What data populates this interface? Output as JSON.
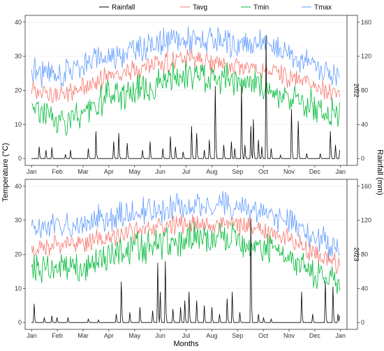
{
  "chart_data": {
    "type": "line",
    "legend": {
      "position": "top",
      "entries": [
        {
          "name": "Rainfall",
          "color": "#000000"
        },
        {
          "name": "Tavg",
          "color": "#F8766D"
        },
        {
          "name": "Tmin",
          "color": "#00BA38"
        },
        {
          "name": "Tmax",
          "color": "#619CFF"
        }
      ]
    },
    "xlabel": "Months",
    "ylabel_left": "Temperature (°C)",
    "ylabel_right": "Rainfall (mm)",
    "x_ticks": [
      "Jan",
      "Feb",
      "Mar",
      "Apr",
      "May",
      "Jun",
      "Jul",
      "Aug",
      "Sep",
      "Oct",
      "Nov",
      "Dec",
      "Jan"
    ],
    "y_left_ticks": [
      0,
      10,
      20,
      30,
      40
    ],
    "y_right_ticks": [
      0,
      40,
      80,
      120,
      160
    ],
    "y_left_range": [
      -2,
      42
    ],
    "y_right_range": [
      -8,
      168
    ],
    "grid": true,
    "panels": [
      {
        "strip": "2022",
        "series": {
          "Tmax_monthly": [
            26,
            24,
            28,
            30,
            32,
            34,
            35,
            34,
            33,
            34,
            31,
            27,
            24
          ],
          "Tavg_monthly": [
            21,
            18,
            21,
            24,
            26,
            28,
            29,
            28,
            27,
            26,
            24,
            21,
            19
          ],
          "Tmin_monthly": [
            16,
            11,
            13,
            18,
            20,
            22,
            24,
            24,
            23,
            21,
            18,
            15,
            13
          ],
          "Rainfall_events": [
            [
              0.3,
              14
            ],
            [
              0.55,
              10
            ],
            [
              0.8,
              13
            ],
            [
              1.3,
              5
            ],
            [
              1.5,
              10
            ],
            [
              2.2,
              12
            ],
            [
              2.5,
              32
            ],
            [
              3.2,
              20
            ],
            [
              3.4,
              30
            ],
            [
              3.7,
              18
            ],
            [
              4.3,
              10
            ],
            [
              4.6,
              20
            ],
            [
              5.1,
              12
            ],
            [
              5.4,
              26
            ],
            [
              5.6,
              14
            ],
            [
              5.9,
              8
            ],
            [
              6.2,
              38
            ],
            [
              6.4,
              30
            ],
            [
              6.7,
              10
            ],
            [
              6.9,
              22
            ],
            [
              7.15,
              85
            ],
            [
              7.45,
              16
            ],
            [
              7.75,
              20
            ],
            [
              7.9,
              12
            ],
            [
              8.15,
              85
            ],
            [
              8.3,
              16
            ],
            [
              8.5,
              38
            ],
            [
              8.6,
              46
            ],
            [
              8.8,
              22
            ],
            [
              8.95,
              14
            ],
            [
              9.1,
              145
            ],
            [
              9.3,
              12
            ],
            [
              9.65,
              4
            ],
            [
              10.1,
              58
            ],
            [
              10.35,
              44
            ],
            [
              10.7,
              6
            ],
            [
              11.2,
              6
            ],
            [
              11.6,
              32
            ],
            [
              11.8,
              16
            ],
            [
              12.0,
              10
            ]
          ]
        }
      },
      {
        "strip": "2023",
        "series": {
          "Tmax_monthly": [
            27,
            29,
            29,
            31,
            32,
            33,
            34,
            35,
            34,
            32,
            30,
            25,
            22
          ],
          "Tavg_monthly": [
            21,
            23,
            23,
            25,
            27,
            28,
            29,
            29,
            28,
            27,
            25,
            20,
            17
          ],
          "Tmin_monthly": [
            15,
            16,
            16,
            19,
            22,
            23,
            24,
            25,
            24,
            22,
            19,
            14,
            12
          ],
          "Rainfall_events": [
            [
              0.1,
              22
            ],
            [
              0.5,
              6
            ],
            [
              0.8,
              8
            ],
            [
              1.0,
              6
            ],
            [
              1.4,
              6
            ],
            [
              2.2,
              4
            ],
            [
              2.6,
              3
            ],
            [
              3.3,
              10
            ],
            [
              3.5,
              48
            ],
            [
              3.8,
              12
            ],
            [
              4.2,
              18
            ],
            [
              4.7,
              14
            ],
            [
              4.9,
              70
            ],
            [
              5.0,
              36
            ],
            [
              5.2,
              72
            ],
            [
              5.5,
              16
            ],
            [
              5.8,
              18
            ],
            [
              5.95,
              26
            ],
            [
              6.1,
              36
            ],
            [
              6.4,
              26
            ],
            [
              6.7,
              20
            ],
            [
              7.0,
              18
            ],
            [
              7.3,
              10
            ],
            [
              7.6,
              28
            ],
            [
              7.8,
              36
            ],
            [
              8.1,
              12
            ],
            [
              8.5,
              122
            ],
            [
              8.8,
              10
            ],
            [
              9.0,
              6
            ],
            [
              9.3,
              4
            ],
            [
              10.5,
              36
            ],
            [
              10.9,
              10
            ],
            [
              11.4,
              48
            ],
            [
              11.7,
              42
            ],
            [
              11.9,
              10
            ],
            [
              12.0,
              8
            ]
          ]
        }
      }
    ]
  }
}
